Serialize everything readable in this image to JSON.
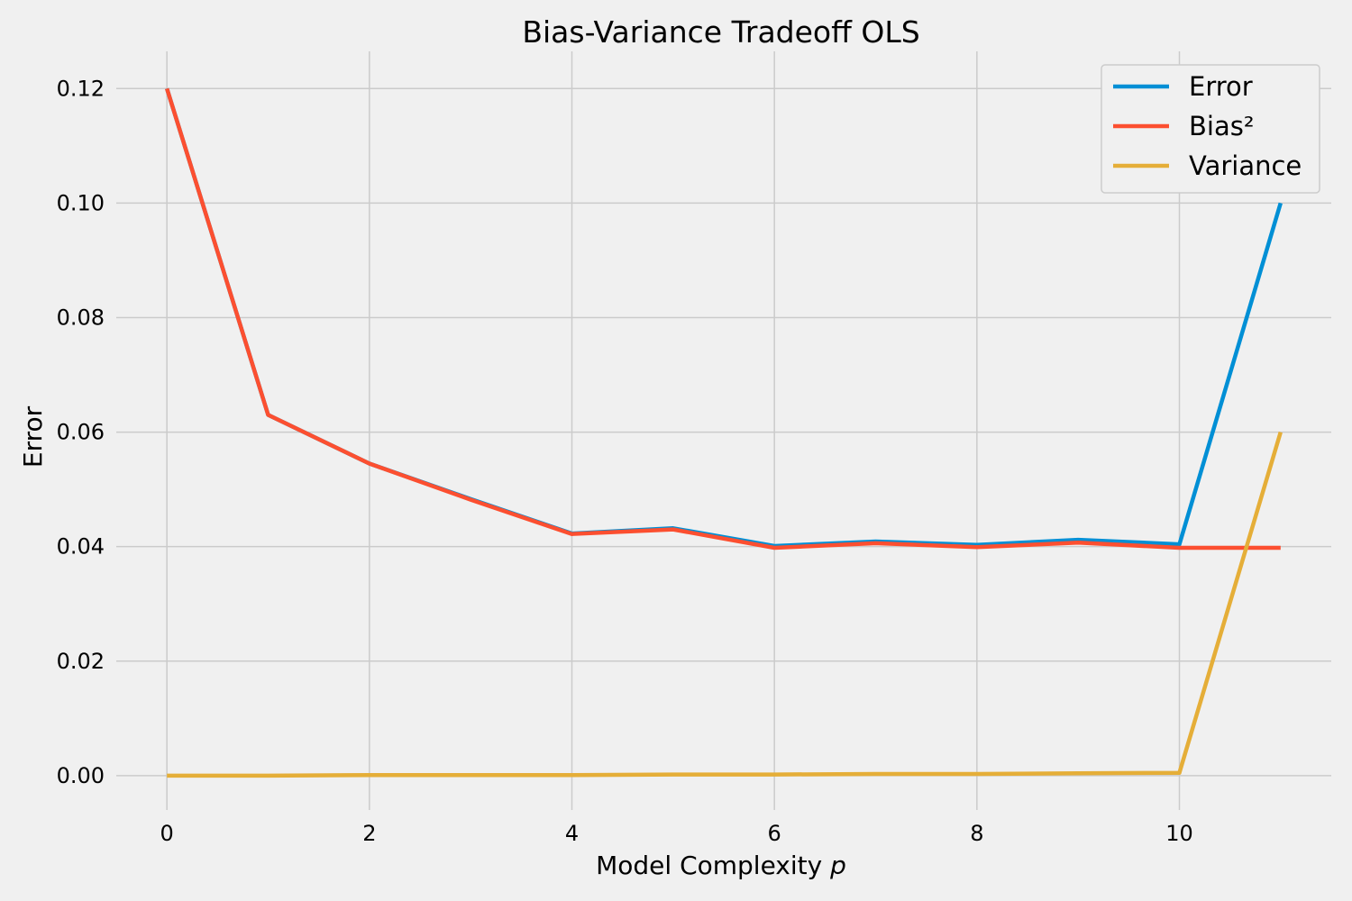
{
  "chart_data": {
    "type": "line",
    "title": "Bias-Variance Tradeoff OLS",
    "xlabel": "Model Complexity ",
    "xlabel_var": "p",
    "ylabel": "Error",
    "x": [
      0,
      1,
      2,
      3,
      4,
      5,
      6,
      7,
      8,
      9,
      10,
      11
    ],
    "xlim": [
      -0.5,
      11.5
    ],
    "ylim": [
      -0.006,
      0.1265
    ],
    "xticks": [
      0,
      2,
      4,
      6,
      8,
      10
    ],
    "xtick_labels": [
      "0",
      "2",
      "4",
      "6",
      "8",
      "10"
    ],
    "yticks": [
      0.0,
      0.02,
      0.04,
      0.06,
      0.08,
      0.1,
      0.12
    ],
    "ytick_labels": [
      "0.00",
      "0.02",
      "0.04",
      "0.06",
      "0.08",
      "0.10",
      "0.12"
    ],
    "grid": true,
    "legend_position": "top-right",
    "series": [
      {
        "name": "Error",
        "color": "#008fd5",
        "values": [
          0.12,
          0.063,
          0.0545,
          0.0483,
          0.0423,
          0.0432,
          0.0401,
          0.0409,
          0.0403,
          0.0412,
          0.0404,
          0.1
        ]
      },
      {
        "name": "Bias²",
        "color": "#fc4f30",
        "values": [
          0.12,
          0.063,
          0.0545,
          0.0482,
          0.0422,
          0.043,
          0.0398,
          0.0406,
          0.0399,
          0.0407,
          0.0398,
          0.0398
        ]
      },
      {
        "name": "Variance",
        "color": "#e5ae38",
        "values": [
          0.0,
          0.0,
          0.0001,
          0.0001,
          0.0001,
          0.0002,
          0.0002,
          0.0003,
          0.0003,
          0.0004,
          0.0005,
          0.06
        ]
      }
    ]
  }
}
